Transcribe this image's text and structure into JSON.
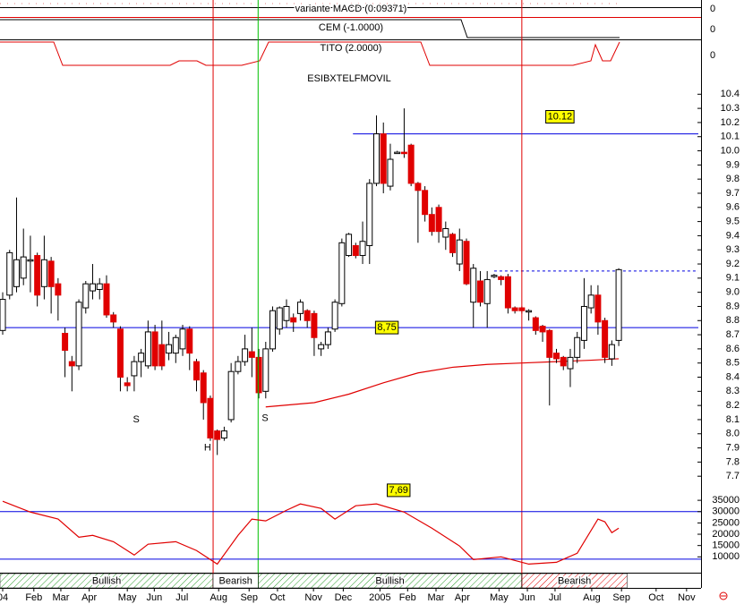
{
  "chart_data": [
    {
      "type": "candlestick",
      "title": "ESIBXTELFMOVIL",
      "xlim": [
        -0.39,
        100.5
      ],
      "ylim": [
        7.6,
        10.56
      ],
      "yticks": [
        7.7,
        7.8,
        7.9,
        {
          "value": 8,
          "label": "8.0"
        },
        8.1,
        8.2,
        8.3,
        8.4,
        8.5,
        8.6,
        8.7,
        8.8,
        8.9,
        {
          "value": 9,
          "label": "9.0"
        },
        9.1,
        9.2,
        9.3,
        9.4,
        9.5,
        9.6,
        9.7,
        9.8,
        9.9,
        {
          "value": 10,
          "label": "10.0"
        },
        10.1,
        10.2,
        10.3,
        10.4
      ],
      "xticks": [
        {
          "value": 0,
          "label": "04"
        },
        {
          "value": 4.5,
          "label": "Feb"
        },
        {
          "value": 8.4,
          "label": "Mar"
        },
        {
          "value": 12.5,
          "label": "Apr"
        },
        {
          "value": 18,
          "label": "May"
        },
        {
          "value": 21.9,
          "label": "Jun"
        },
        {
          "value": 25.9,
          "label": "Jul"
        },
        {
          "value": 31.2,
          "label": "Aug"
        },
        {
          "value": 35.6,
          "label": "Sep"
        },
        {
          "value": 39.7,
          "label": "Oct"
        },
        {
          "value": 44.9,
          "label": "Nov"
        },
        {
          "value": 49.2,
          "label": "Dec"
        },
        {
          "value": 54.5,
          "label": "2005"
        },
        {
          "value": 58.5,
          "label": "Feb"
        },
        {
          "value": 62.6,
          "label": "Mar"
        },
        {
          "value": 66.4,
          "label": "Apr"
        },
        {
          "value": 71.7,
          "label": "May"
        },
        {
          "value": 75.8,
          "label": "Jun"
        },
        {
          "value": 79.8,
          "label": "Jul"
        },
        {
          "value": 85.1,
          "label": "Aug"
        },
        {
          "value": 89.4,
          "label": "Sep"
        },
        {
          "value": 94.4,
          "label": "Oct"
        },
        {
          "value": 98.8,
          "label": "Nov"
        }
      ],
      "up_color": "#ffffff",
      "down_color": "#e00000",
      "open": [
        8.73,
        8.98,
        9.04,
        9.1,
        9.23,
        9.26,
        9.04,
        9.22,
        9.06,
        8.71,
        8.51,
        8.48,
        8.89,
        9.01,
        9.02,
        9.06,
        8.84,
        8.74,
        8.36,
        8.41,
        8.51,
        8.48,
        8.72,
        8.63,
        8.57,
        8.57,
        8.6,
        8.74,
        8.51,
        8.43,
        8.25,
        8.02,
        7.97,
        8.1,
        8.44,
        8.51,
        8.58,
        8.54,
        8.3,
        8.6,
        8.74,
        8.8,
        8.82,
        8.85,
        8.87,
        8.85,
        8.6,
        8.63,
        8.74,
        8.92,
        9.26,
        9.33,
        9.26,
        9.33,
        9.77,
        10.12,
        9.75,
        9.99,
        9.99,
        10.04,
        9.77,
        9.72,
        9.55,
        9.6,
        9.39,
        9.41,
        9.2,
        9.36,
        8.93,
        9.08,
        8.92,
        9.12,
        9.11,
        9.11,
        8.89,
        8.89,
        8.87,
        8.82,
        8.76,
        8.73,
        8.57,
        8.54,
        8.46,
        8.54,
        8.66,
        8.89,
        8.98,
        8.8,
        8.53,
        8.66
      ],
      "high": [
        9.0,
        9.3,
        9.67,
        9.45,
        9.4,
        9.28,
        9.4,
        9.25,
        9.1,
        8.75,
        8.55,
        8.95,
        9.08,
        9.2,
        9.1,
        9.12,
        8.86,
        8.76,
        8.4,
        8.55,
        8.6,
        8.8,
        8.77,
        8.8,
        8.72,
        8.7,
        8.77,
        8.76,
        8.53,
        8.45,
        8.27,
        8.03,
        8.05,
        8.5,
        8.55,
        8.7,
        8.75,
        8.6,
        8.65,
        8.9,
        8.9,
        8.95,
        8.85,
        8.95,
        8.88,
        8.87,
        8.65,
        8.75,
        8.95,
        9.38,
        9.42,
        9.35,
        9.5,
        9.8,
        10.25,
        10.2,
        10.05,
        10.0,
        10.3,
        10.05,
        9.78,
        9.75,
        9.6,
        9.62,
        9.5,
        9.42,
        9.45,
        9.38,
        9.2,
        9.15,
        9.15,
        9.13,
        9.12,
        9.13,
        8.9,
        8.9,
        8.88,
        8.83,
        8.77,
        8.74,
        8.6,
        8.55,
        8.6,
        8.72,
        9.1,
        9.05,
        9.05,
        8.82,
        8.66,
        9.17
      ],
      "low": [
        8.7,
        8.95,
        9.0,
        9.05,
        9.0,
        8.9,
        8.95,
        8.85,
        8.8,
        8.4,
        8.3,
        8.45,
        8.85,
        8.95,
        8.95,
        8.82,
        8.75,
        8.3,
        8.3,
        8.3,
        8.4,
        8.46,
        8.45,
        8.45,
        8.52,
        8.5,
        8.55,
        8.45,
        8.3,
        8.1,
        7.95,
        7.85,
        7.95,
        8.08,
        8.42,
        8.48,
        8.4,
        8.25,
        8.25,
        8.58,
        8.7,
        8.75,
        8.72,
        8.8,
        8.75,
        8.55,
        8.55,
        8.6,
        8.72,
        8.9,
        9.25,
        9.24,
        9.2,
        9.2,
        9.75,
        9.7,
        9.72,
        9.98,
        9.95,
        9.75,
        9.35,
        9.5,
        9.4,
        9.35,
        9.3,
        9.25,
        9.15,
        9.05,
        8.75,
        8.9,
        8.75,
        9.1,
        9.05,
        8.85,
        8.85,
        8.85,
        8.8,
        8.7,
        8.65,
        8.2,
        8.5,
        8.45,
        8.33,
        8.5,
        8.6,
        8.85,
        8.7,
        8.5,
        8.48,
        8.62
      ],
      "close": [
        8.95,
        9.28,
        9.23,
        9.25,
        9.23,
        8.98,
        9.23,
        9.04,
        8.98,
        8.59,
        8.48,
        8.93,
        9.06,
        9.06,
        9.06,
        8.84,
        8.79,
        8.4,
        8.34,
        8.51,
        8.57,
        8.72,
        8.48,
        8.48,
        8.63,
        8.68,
        8.74,
        8.57,
        8.38,
        8.22,
        7.97,
        7.96,
        8.02,
        8.44,
        8.51,
        8.6,
        8.54,
        8.29,
        8.6,
        8.87,
        8.89,
        8.9,
        8.79,
        8.93,
        8.8,
        8.68,
        8.63,
        8.72,
        8.93,
        9.35,
        9.41,
        9.26,
        9.36,
        9.77,
        10.12,
        9.77,
        9.94,
        9.99,
        9.98,
        9.77,
        9.72,
        9.55,
        9.43,
        9.43,
        9.45,
        9.28,
        9.37,
        9.06,
        9.17,
        8.93,
        9.09,
        9.12,
        9.09,
        8.89,
        8.87,
        8.87,
        8.87,
        8.73,
        8.72,
        8.54,
        8.53,
        8.48,
        8.54,
        8.68,
        8.9,
        8.98,
        8.79,
        8.54,
        8.63,
        9.16
      ],
      "series": [
        {
          "x": [
            38,
            45,
            50,
            55,
            60,
            65,
            70,
            75,
            80,
            85,
            89
          ],
          "values": [
            8.19,
            8.22,
            8.28,
            8.36,
            8.43,
            8.47,
            8.49,
            8.5,
            8.51,
            8.52,
            8.53
          ],
          "color": "#e00000"
        }
      ],
      "levels": [
        {
          "value": 8.75,
          "from": -0.39,
          "to": 100.5,
          "color": "#0000e0",
          "dashed": false
        },
        {
          "value": 10.12,
          "from": 50.6,
          "to": 100.5,
          "color": "#0000e0",
          "dashed": false
        },
        {
          "value": 9.15,
          "from": 71,
          "to": 100.5,
          "color": "#0000e0",
          "dashed": true
        }
      ],
      "signals": [
        {
          "x": 30.4,
          "color": "#e00000"
        },
        {
          "x": 36.9,
          "color": "#00c000"
        },
        {
          "x": 75,
          "color": "#e00000"
        }
      ],
      "regimes": [
        {
          "label": "Bullish",
          "from": -0.39,
          "to": 30.4,
          "hatched": true,
          "color": "#2e9e2e"
        },
        {
          "label": "Bearish",
          "from": 30.4,
          "to": 36.9,
          "hatched": false,
          "color": "#2e9e2e"
        },
        {
          "label": "Bullish",
          "from": 36.9,
          "to": 75,
          "hatched": true,
          "color": "#2e9e2e"
        },
        {
          "label": "Bearish",
          "from": 75,
          "to": 90.2,
          "hatched": true,
          "color": "#e00000"
        }
      ],
      "annotations": [
        {
          "text": "S",
          "x": 19.3,
          "y": 8.1,
          "box": false
        },
        {
          "text": "H",
          "x": 29.6,
          "y": 7.9,
          "box": false
        },
        {
          "text": "S",
          "x": 37.9,
          "y": 8.11,
          "box": false
        },
        {
          "text": "8,75",
          "x": 55.5,
          "y": 8.75,
          "box": true
        },
        {
          "text": "10.12",
          "x": 80.5,
          "y": 10.24,
          "box": true
        },
        {
          "text": "7,69",
          "x": 57.2,
          "y": 7.6,
          "box": true
        }
      ]
    },
    {
      "type": "line",
      "ylim": [
        3000,
        39400
      ],
      "yticks": [
        10000,
        15000,
        20000,
        25000,
        30000,
        35000
      ],
      "levels": [
        {
          "value": 30000,
          "color": "#0000e0"
        },
        {
          "value": 9000,
          "color": "#0000e0"
        }
      ],
      "series": [
        {
          "x": [
            0,
            4,
            8,
            11,
            13,
            16,
            19,
            21,
            25,
            28,
            31,
            34,
            36,
            38,
            41,
            43,
            46,
            48,
            51,
            54,
            58,
            62,
            66,
            68,
            72,
            76,
            80,
            83,
            86,
            87,
            88,
            89
          ],
          "values": [
            34600,
            29800,
            26700,
            18700,
            19500,
            16700,
            10800,
            15600,
            16700,
            12800,
            6800,
            19500,
            26700,
            25900,
            30600,
            33400,
            31400,
            26700,
            32600,
            33400,
            29800,
            22700,
            14800,
            8800,
            10000,
            6800,
            7600,
            11600,
            26700,
            25500,
            20700,
            22700
          ],
          "color": "#e00000"
        }
      ]
    },
    {
      "type": "indicator",
      "title": "variante MACD (0.09371)",
      "yticks": [
        0
      ]
    },
    {
      "type": "indicator",
      "title": "CEM (-1.0000)",
      "yticks": [
        0
      ]
    },
    {
      "type": "indicator",
      "title": "TITO (2.0000)",
      "yticks": [
        0
      ]
    }
  ]
}
